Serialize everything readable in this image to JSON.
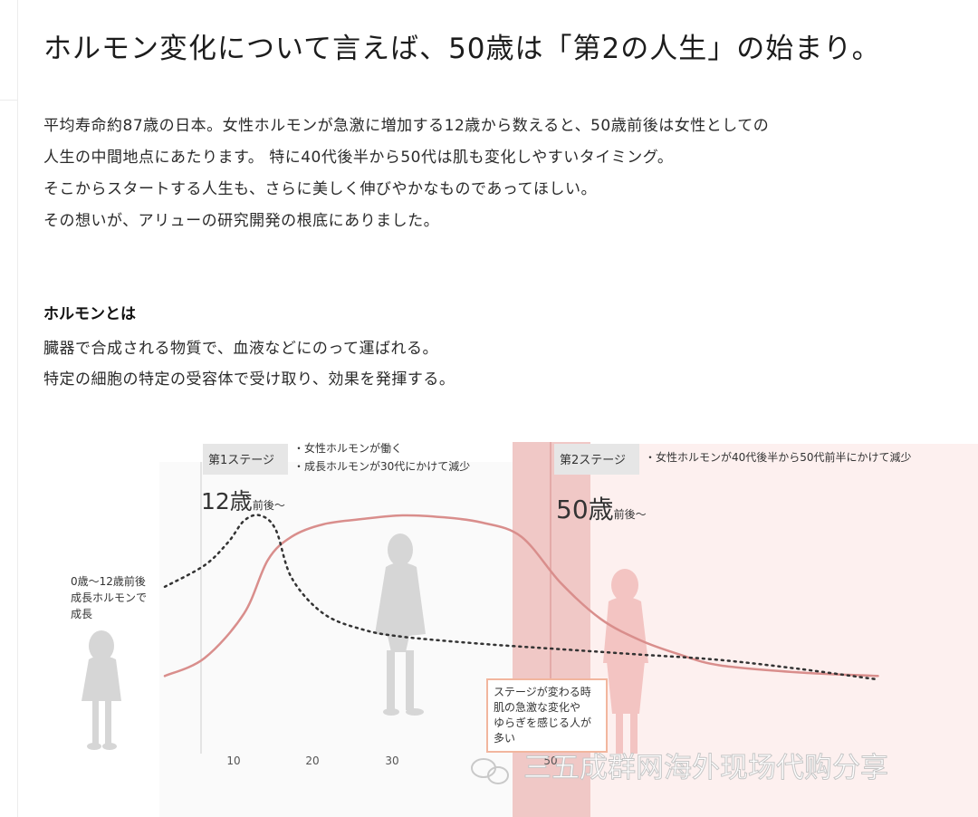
{
  "heading": "ホルモン変化について言えば、50歳は「第2の人生」の始まり。",
  "intro_lines": [
    "平均寿命約87歳の日本。女性ホルモンが急激に増加する12歳から数えると、50歳前後は女性としての",
    "人生の中間地点にあたります。 特に40代後半から50代は肌も変化しやすいタイミング。",
    "そこからスタートする人生も、さらに美しく伸びやかなものであってほしい。",
    "その想いが、アリューの研究開発の根底にありました。"
  ],
  "definition": {
    "title": "ホルモンとは",
    "lines": [
      "臓器で合成される物質で、血液などにのって運ばれる。",
      "特定の細胞の特定の受容体で受け取り、効果を発揮する。"
    ]
  },
  "chart": {
    "stage1": {
      "label": "第1ステージ",
      "notes": [
        "・女性ホルモンが働く",
        "・成長ホルモンが30代にかけて減少"
      ],
      "age_big": "12歳",
      "age_small": "前後〜"
    },
    "stage2": {
      "label": "第2ステージ",
      "note": "・女性ホルモンが40代後半から50代前半にかけて減少",
      "age_big": "50歳",
      "age_small": "前後〜"
    },
    "childhood_note": [
      "0歳〜12歳前後",
      "成長ホルモンで",
      "成長"
    ],
    "transition_note": [
      "ステージが変わる時",
      "肌の急激な変化や",
      "ゆらぎを感じる人が",
      "多い"
    ],
    "colors": {
      "female_hormone": "#d98e8c",
      "growth_hormone": "#333333",
      "band": "#f0c8c6",
      "stage2_bg": "#fdf0ef",
      "label_box": "#e6e6e6",
      "silhouette_gray": "#d6d6d6",
      "silhouette_pink": "#f3c4c2",
      "callout_border": "#f2b69e"
    }
  },
  "chart_data": {
    "type": "line",
    "xlabel": "",
    "ylabel": "",
    "x_ticks": [
      10,
      20,
      30,
      50
    ],
    "series": [
      {
        "x": [
          0,
          5,
          10,
          13,
          16,
          20,
          25,
          30,
          35,
          40,
          45,
          50,
          55,
          60,
          65,
          70,
          80,
          90
        ],
        "y": [
          0.1,
          0.2,
          0.45,
          0.75,
          0.88,
          0.95,
          0.98,
          1.0,
          0.99,
          0.96,
          0.88,
          0.62,
          0.42,
          0.3,
          0.22,
          0.16,
          0.12,
          0.1
        ]
      },
      {
        "x": [
          0,
          5,
          8,
          10,
          12,
          14,
          16,
          20,
          25,
          30,
          40,
          50,
          60,
          70,
          80,
          90
        ],
        "y": [
          0.6,
          0.72,
          0.85,
          0.97,
          1.0,
          0.92,
          0.65,
          0.45,
          0.36,
          0.32,
          0.28,
          0.25,
          0.22,
          0.19,
          0.14,
          0.08
        ]
      }
    ]
  },
  "watermark": "三五成群网海外现场代购分享"
}
